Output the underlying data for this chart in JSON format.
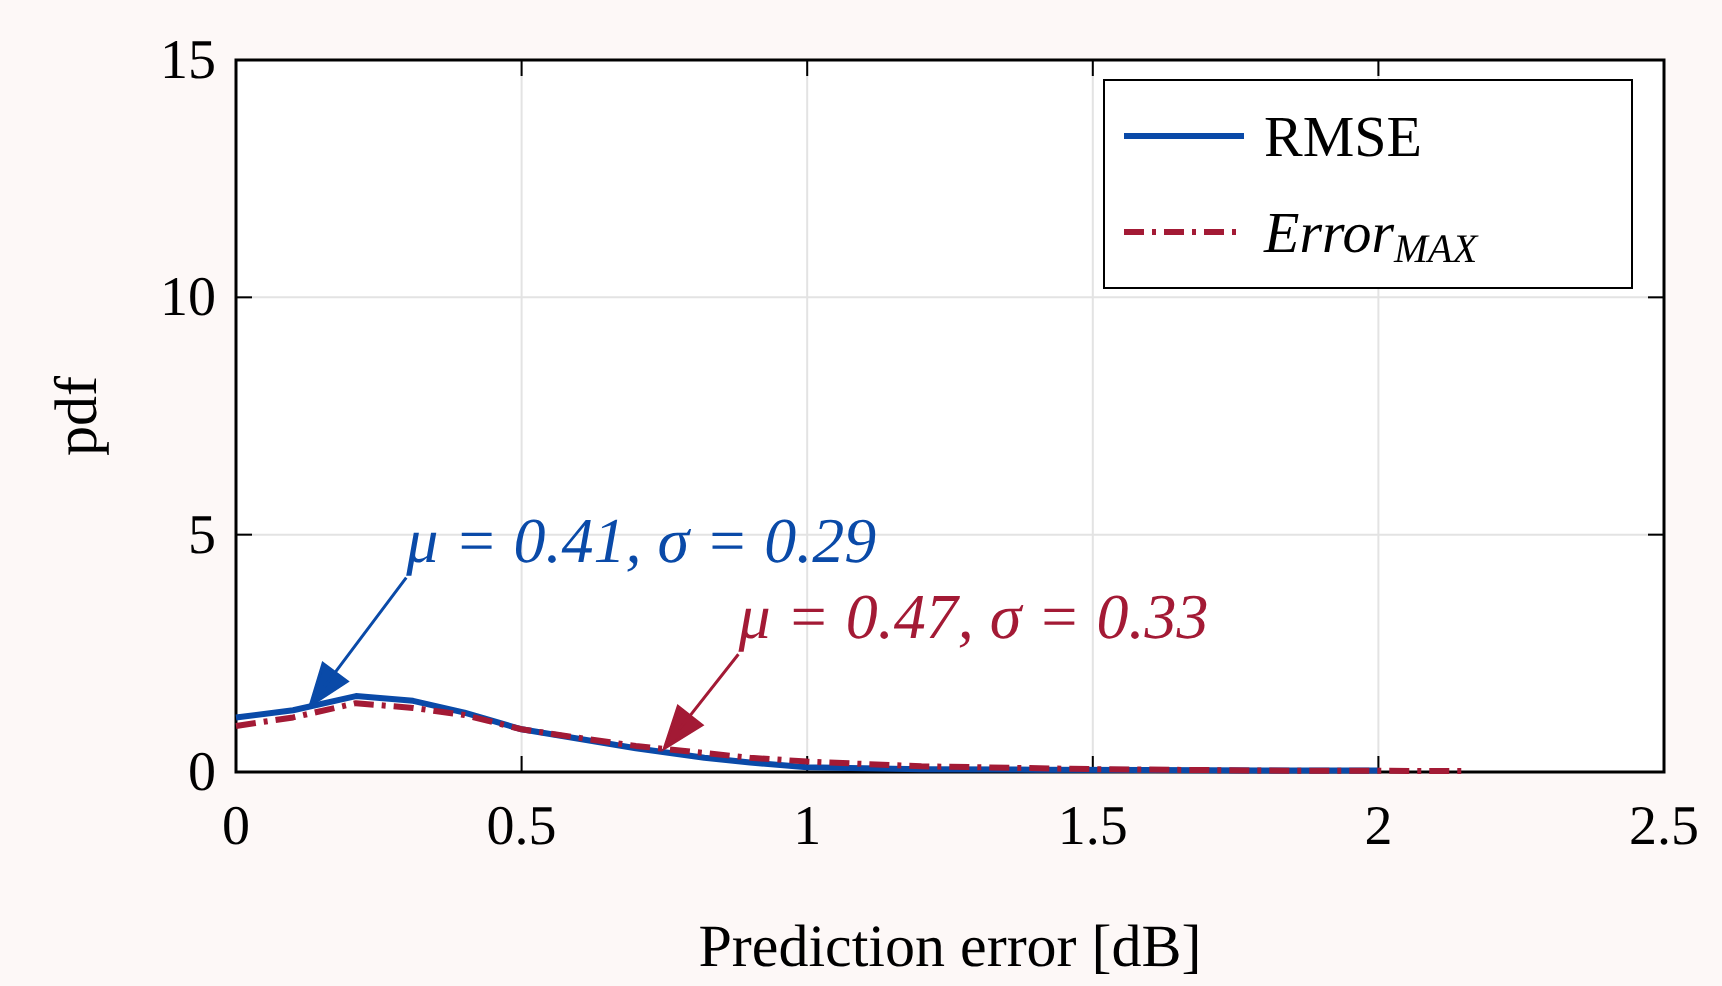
{
  "chart_data": {
    "type": "line",
    "xlabel": "Prediction error [dB]",
    "ylabel": "pdf",
    "xlim": [
      0,
      2.5
    ],
    "xticks": [
      0,
      0.5,
      1,
      1.5,
      2,
      2.5
    ],
    "ylim": [
      0,
      15
    ],
    "yticks": [
      0,
      5,
      10,
      15
    ],
    "grid": true,
    "legend": "top right",
    "series": [
      {
        "name": "RMSE",
        "color": "#0a4aa8",
        "line_style": "solid",
        "x": [
          0,
          0.1,
          0.21,
          0.31,
          0.4,
          0.5,
          0.6,
          0.7,
          0.82,
          0.9,
          1,
          1.2,
          1.4,
          1.6,
          1.8,
          2
        ],
        "values": [
          1.15,
          1.3,
          1.6,
          1.5,
          1.25,
          0.9,
          0.7,
          0.5,
          0.3,
          0.2,
          0.1,
          0.06,
          0.05,
          0.04,
          0.03,
          0.03
        ]
      },
      {
        "name": "Error$_{MAX}$",
        "color": "#a31a35",
        "line_style": "dashdot",
        "x": [
          0,
          0.1,
          0.21,
          0.31,
          0.4,
          0.5,
          0.6,
          0.7,
          0.82,
          0.9,
          1,
          1.2,
          1.5,
          1.8,
          2.15
        ],
        "values": [
          0.97,
          1.15,
          1.45,
          1.35,
          1.2,
          0.9,
          0.72,
          0.55,
          0.4,
          0.3,
          0.22,
          0.12,
          0.06,
          0.03,
          0.02
        ]
      }
    ],
    "annotations": [
      {
        "text": "μ = 0.41, σ = 0.29",
        "x": 0.13,
        "y": 1.4
      },
      {
        "text": "μ = 0.47, σ = 0.33",
        "x": 0.75,
        "y": 0.5
      }
    ]
  }
}
